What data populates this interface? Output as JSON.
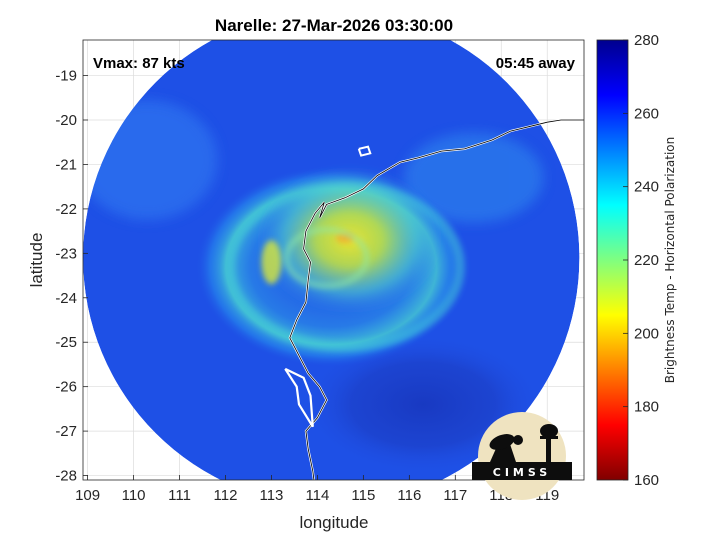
{
  "title": "Narelle: 27-Mar-2026 03:30:00",
  "annotations": {
    "vmax": "Vmax: 87 kts",
    "time_away": "05:45 away"
  },
  "axes": {
    "xlabel": "longitude",
    "ylabel": "latitude",
    "xlim": [
      108.9,
      119.8
    ],
    "ylim": [
      -28.1,
      -18.2
    ],
    "xticks": [
      109,
      110,
      111,
      112,
      113,
      114,
      115,
      116,
      117,
      118,
      119
    ],
    "yticks": [
      -19,
      -20,
      -21,
      -22,
      -23,
      -24,
      -25,
      -26,
      -27,
      -28
    ],
    "grid": true
  },
  "colorbar": {
    "label": "Brightness Temp - Horizontal Polarization",
    "range": [
      160,
      280
    ],
    "ticks": [
      280,
      260,
      240,
      220,
      200,
      180,
      160
    ],
    "colormap": "jet",
    "position": "right"
  },
  "map": {
    "swath_center": {
      "lon": 114.3,
      "lat": -23.1
    },
    "swath_radius_deg": 5.4,
    "background_color": "#1e50e6",
    "eye_center": {
      "lon": 113.9,
      "lat": -23.2
    },
    "coastline_color": "#ffffff"
  },
  "logo": {
    "text": "CIMSS"
  },
  "chart_data": {
    "type": "heatmap",
    "title": "Narelle: 27-Mar-2026 03:30:00",
    "xlabel": "longitude",
    "ylabel": "latitude",
    "xlim": [
      108.9,
      119.8
    ],
    "ylim": [
      -28.1,
      -18.2
    ],
    "colorbar_range": [
      160,
      280
    ],
    "colorbar_label": "Brightness Temp - Horizontal Polarization",
    "features": [
      {
        "name": "warm-core",
        "lon": 114.7,
        "lat": -22.7,
        "value": 208
      },
      {
        "name": "eye-hotspot",
        "lon": 114.6,
        "lat": -22.65,
        "value": 200
      },
      {
        "name": "eyewall-west",
        "lon": 113.0,
        "lat": -23.2,
        "value": 210
      },
      {
        "name": "inner-band",
        "lon": 115.6,
        "lat": -23.4,
        "value": 218
      },
      {
        "name": "outer-ring",
        "lon": 114.3,
        "lat": -23.3,
        "value": 240
      },
      {
        "name": "cold-sector-south",
        "lon": 116.3,
        "lat": -26.4,
        "value": 272
      },
      {
        "name": "background",
        "lon": 110.5,
        "lat": -21.0,
        "value": 258
      }
    ]
  }
}
